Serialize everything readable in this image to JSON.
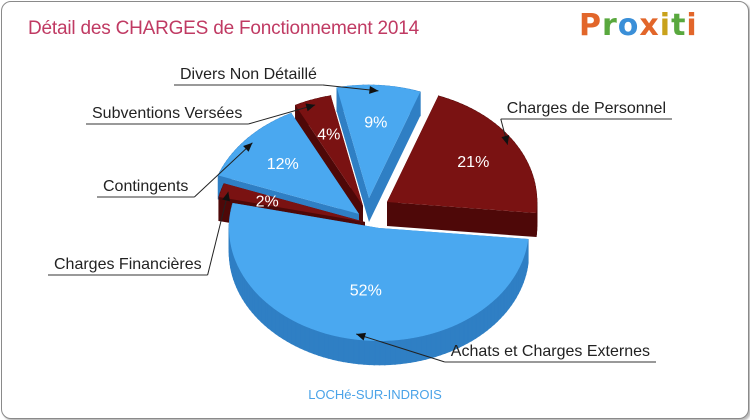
{
  "title": "Détail des CHARGES de Fonctionnement 2014",
  "logo": {
    "text": "Proxiti",
    "letters": [
      "P",
      "r",
      "o",
      "x",
      "i",
      "t",
      "i"
    ],
    "colors": [
      "#e2662a",
      "#59a83e",
      "#3a8fd8",
      "#e2662a",
      "#c9a21b",
      "#59a83e",
      "#e2662a"
    ]
  },
  "city": "LOCHé-SUR-INDROIS",
  "colors": {
    "blue": "#4aa8f0",
    "blue_dark": "#2f7fc4",
    "red": "#7a1212",
    "red_dark": "#4e0808",
    "title": "#c03a63"
  },
  "chart_data": {
    "type": "pie",
    "title": "Détail des CHARGES de Fonctionnement 2014",
    "slices": [
      {
        "label": "Charges de Personnel",
        "value": 21,
        "pct_label": "21%",
        "color": "red"
      },
      {
        "label": "Achats et Charges Externes",
        "value": 52,
        "pct_label": "52%",
        "color": "blue"
      },
      {
        "label": "Charges Financières",
        "value": 2,
        "pct_label": "2%",
        "color": "red"
      },
      {
        "label": "Contingents",
        "value": 12,
        "pct_label": "12%",
        "color": "blue"
      },
      {
        "label": "Subventions Versées",
        "value": 4,
        "pct_label": "4%",
        "color": "red"
      },
      {
        "label": "Divers Non Détaillé",
        "value": 9,
        "pct_label": "9%",
        "color": "blue"
      }
    ]
  }
}
